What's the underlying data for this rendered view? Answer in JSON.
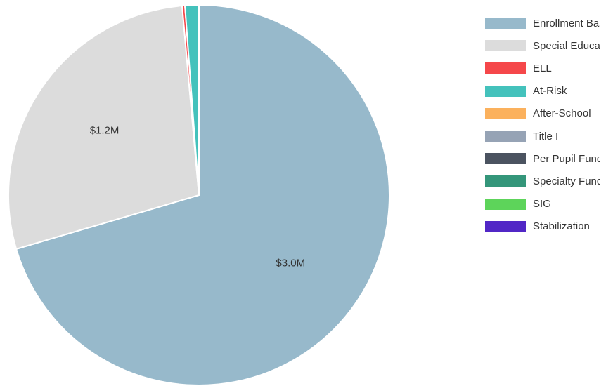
{
  "chart_data": {
    "type": "pie",
    "title": "",
    "slices": [
      {
        "name": "Enrollment Based",
        "value": 3.0,
        "label": "$3.0M",
        "color": "#97b9cb"
      },
      {
        "name": "Special Education",
        "value": 1.2,
        "label": "$1.2M",
        "color": "#dcdcdc"
      },
      {
        "name": "ELL",
        "value": 0.01,
        "label": "",
        "color": "#f5474a"
      },
      {
        "name": "At-Risk",
        "value": 0.05,
        "label": "",
        "color": "#44c2bc"
      },
      {
        "name": "After-School",
        "value": 0,
        "label": "",
        "color": "#fbb15d"
      },
      {
        "name": "Title I",
        "value": 0,
        "label": "",
        "color": "#96a3b5"
      },
      {
        "name": "Per Pupil Funding",
        "value": 0,
        "label": "",
        "color": "#4b5360"
      },
      {
        "name": "Specialty Funding",
        "value": 0,
        "label": "",
        "color": "#34967a"
      },
      {
        "name": "SIG",
        "value": 0,
        "label": "",
        "color": "#5dd45a"
      },
      {
        "name": "Stabilization",
        "value": 0,
        "label": "",
        "color": "#5127c6"
      }
    ],
    "legend_position": "right",
    "start_angle": "12 o'clock",
    "direction": "clockwise"
  },
  "legend": {
    "items": [
      {
        "label": "Enrollment Based",
        "color": "#97b9cb"
      },
      {
        "label": "Special Education",
        "color": "#dcdcdc"
      },
      {
        "label": "ELL",
        "color": "#f5474a"
      },
      {
        "label": "At-Risk",
        "color": "#44c2bc"
      },
      {
        "label": "After-School",
        "color": "#fbb15d"
      },
      {
        "label": "Title I",
        "color": "#96a3b5"
      },
      {
        "label": "Per Pupil Funding",
        "color": "#4b5360"
      },
      {
        "label": "Specialty Funding",
        "color": "#34967a"
      },
      {
        "label": "SIG",
        "color": "#5dd45a"
      },
      {
        "label": "Stabilization",
        "color": "#5127c6"
      }
    ]
  }
}
